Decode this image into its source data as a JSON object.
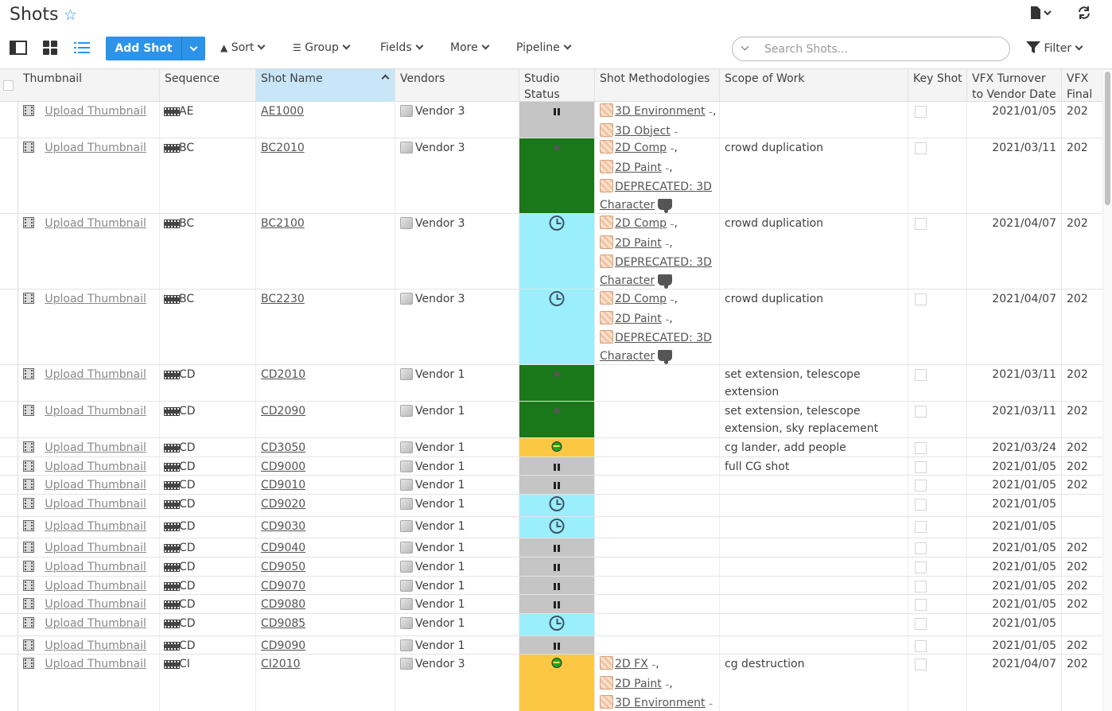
{
  "page": {
    "title": "Shots",
    "star_icon": "star-icon",
    "file_icon": "file-icon",
    "refresh_icon": "refresh-icon"
  },
  "toolbar": {
    "add_label": "Add Shot",
    "sort_label": "Sort",
    "group_label": "Group",
    "fields_label": "Fields",
    "more_label": "More",
    "pipeline_label": "Pipeline",
    "search_placeholder": "Search Shots...",
    "filter_label": "Filter"
  },
  "columns": {
    "thumbnail": "Thumbnail",
    "sequence": "Sequence",
    "shot_name": "Shot Name",
    "vendors": "Vendors",
    "studio_status": "Studio Status",
    "methodologies": "Shot Methodologies",
    "scope": "Scope of Work",
    "key_shot": "Key Shot",
    "vfx_turnover": "VFX Turnover to Vendor Date",
    "vfx_final": "VFX Final Delivery"
  },
  "status_colors": {
    "hold": "#c5c5c5",
    "final": "#1a781a",
    "waiting": "#9beefc",
    "in_progress": "#fcc844"
  },
  "rows": [
    {
      "thumb": "Upload Thumbnail",
      "seq": "AE",
      "shot": "AE1000",
      "vendor": "Vendor 3",
      "status": "hold",
      "meths": [
        "3D Environment",
        "3D Object"
      ],
      "meth_tail": "",
      "scope": "",
      "turnover": "2021/01/05",
      "final": "202"
    },
    {
      "thumb": "Upload Thumbnail",
      "seq": "BC",
      "shot": "BC2010",
      "vendor": "Vendor 3",
      "status": "final",
      "meths": [
        "2D Comp",
        "2D Paint",
        "DEPRECATED: 3D"
      ],
      "meth_tail": "Character",
      "scope": "crowd duplication",
      "turnover": "2021/03/11",
      "final": "202"
    },
    {
      "thumb": "Upload Thumbnail",
      "seq": "BC",
      "shot": "BC2100",
      "vendor": "Vendor 3",
      "status": "waiting",
      "meths": [
        "2D Comp",
        "2D Paint",
        "DEPRECATED: 3D"
      ],
      "meth_tail": "Character",
      "scope": "crowd duplication",
      "turnover": "2021/04/07",
      "final": "202"
    },
    {
      "thumb": "Upload Thumbnail",
      "seq": "BC",
      "shot": "BC2230",
      "vendor": "Vendor 3",
      "status": "waiting",
      "meths": [
        "2D Comp",
        "2D Paint",
        "DEPRECATED: 3D"
      ],
      "meth_tail": "Character",
      "scope": "crowd duplication",
      "turnover": "2021/04/07",
      "final": "202"
    },
    {
      "thumb": "Upload Thumbnail",
      "seq": "CD",
      "shot": "CD2010",
      "vendor": "Vendor 1",
      "status": "final",
      "meths": [],
      "meth_tail": "",
      "scope": "set extension, telescope",
      "scope2": "extension",
      "turnover": "2021/03/11",
      "final": "202"
    },
    {
      "thumb": "Upload Thumbnail",
      "seq": "CD",
      "shot": "CD2090",
      "vendor": "Vendor 1",
      "status": "final",
      "meths": [],
      "meth_tail": "",
      "scope": "set extension, telescope",
      "scope2": "extension, sky replacement",
      "turnover": "2021/03/11",
      "final": "202"
    },
    {
      "thumb": "Upload Thumbnail",
      "seq": "CD",
      "shot": "CD3050",
      "vendor": "Vendor 1",
      "status": "in_progress",
      "meths": [],
      "meth_tail": "",
      "scope": "cg lander, add people",
      "turnover": "2021/03/24",
      "final": "202"
    },
    {
      "thumb": "Upload Thumbnail",
      "seq": "CD",
      "shot": "CD9000",
      "vendor": "Vendor 1",
      "status": "hold",
      "meths": [],
      "meth_tail": "",
      "scope": "full CG shot",
      "turnover": "2021/01/05",
      "final": "202"
    },
    {
      "thumb": "Upload Thumbnail",
      "seq": "CD",
      "shot": "CD9010",
      "vendor": "Vendor 1",
      "status": "hold",
      "meths": [],
      "meth_tail": "",
      "scope": "",
      "turnover": "2021/01/05",
      "final": "202"
    },
    {
      "thumb": "Upload Thumbnail",
      "seq": "CD",
      "shot": "CD9020",
      "vendor": "Vendor 1",
      "status": "waiting",
      "meths": [],
      "meth_tail": "",
      "scope": "",
      "turnover": "2021/01/05",
      "final": ""
    },
    {
      "thumb": "Upload Thumbnail",
      "seq": "CD",
      "shot": "CD9030",
      "vendor": "Vendor 1",
      "status": "waiting",
      "meths": [],
      "meth_tail": "",
      "scope": "",
      "turnover": "2021/01/05",
      "final": ""
    },
    {
      "thumb": "Upload Thumbnail",
      "seq": "CD",
      "shot": "CD9040",
      "vendor": "Vendor 1",
      "status": "hold",
      "meths": [],
      "meth_tail": "",
      "scope": "",
      "turnover": "2021/01/05",
      "final": "202"
    },
    {
      "thumb": "Upload Thumbnail",
      "seq": "CD",
      "shot": "CD9050",
      "vendor": "Vendor 1",
      "status": "hold",
      "meths": [],
      "meth_tail": "",
      "scope": "",
      "turnover": "2021/01/05",
      "final": "202"
    },
    {
      "thumb": "Upload Thumbnail",
      "seq": "CD",
      "shot": "CD9070",
      "vendor": "Vendor 1",
      "status": "hold",
      "meths": [],
      "meth_tail": "",
      "scope": "",
      "turnover": "2021/01/05",
      "final": "202"
    },
    {
      "thumb": "Upload Thumbnail",
      "seq": "CD",
      "shot": "CD9080",
      "vendor": "Vendor 1",
      "status": "hold",
      "meths": [],
      "meth_tail": "",
      "scope": "",
      "turnover": "2021/01/05",
      "final": "202"
    },
    {
      "thumb": "Upload Thumbnail",
      "seq": "CD",
      "shot": "CD9085",
      "vendor": "Vendor 1",
      "status": "waiting",
      "meths": [],
      "meth_tail": "",
      "scope": "",
      "turnover": "2021/01/05",
      "final": ""
    },
    {
      "thumb": "Upload Thumbnail",
      "seq": "CD",
      "shot": "CD9090",
      "vendor": "Vendor 1",
      "status": "hold",
      "meths": [],
      "meth_tail": "",
      "scope": "",
      "turnover": "2021/01/05",
      "final": "202"
    },
    {
      "thumb": "Upload Thumbnail",
      "seq": "CI",
      "shot": "CI2010",
      "vendor": "Vendor 3",
      "status": "in_progress",
      "meths": [
        "2D FX",
        "2D Paint",
        "3D Environment"
      ],
      "meth_tail": "",
      "scope": "cg destruction",
      "turnover": "2021/04/07",
      "final": "202"
    }
  ]
}
